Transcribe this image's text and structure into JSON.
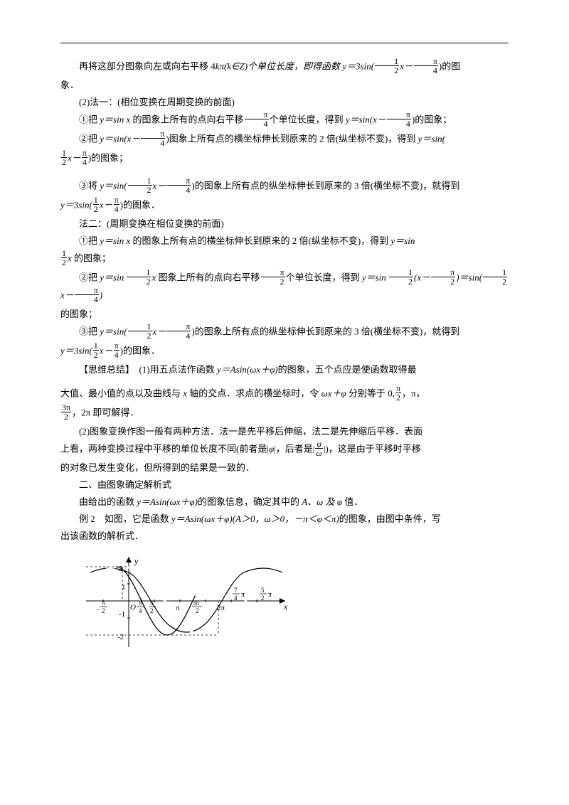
{
  "p1_a": "再将这部分图象向左或向右平移 4",
  "p1_b": "kπ(k∈Z)个单位长度，即得函数 ",
  "p1_c": "y＝3sin(",
  "p1_d": "x－",
  "p1_e": ")的图",
  "p1_f": "象．",
  "p2": "(2)法一：(相位变换在周期变换的前面)",
  "p3_a": "①把 ",
  "p3_b": "y＝sin x",
  "p3_c": " 的图象上所有的点向右平移",
  "p3_d": "个单位长度，得到 ",
  "p3_e": "y＝sin(x－",
  "p3_f": ")的图象；",
  "p4_a": "②把 ",
  "p4_b": "y＝sin(x－",
  "p4_c": ")图象上所有点的横坐标伸长到原来的 2 倍(纵坐标不变)，得到 ",
  "p4_d": "y＝sin(",
  "p4_e": "x－",
  "p4_f": ")的图象；",
  "p5_a": "③将 ",
  "p5_b": "y＝sin(",
  "p5_c": "x－",
  "p5_d": ")的图象上所有点的纵坐标伸长到原来的 3 倍(横坐标不变)，就得到",
  "p5_e": "y＝3sin(",
  "p5_f": "x－",
  "p5_g": ")的图象．",
  "p6": "法二：(周期变换在相位变换的前面)",
  "p7_a": "①把 ",
  "p7_b": "y＝sin x",
  "p7_c": " 的图象上所有点的横坐标伸长到原来的 2 倍(纵坐标不变)，得到 ",
  "p7_d": "y＝sin",
  "p7_e": "x",
  "p7_f": " 的图象；",
  "p8_a": "②把 ",
  "p8_b": "y＝sin ",
  "p8_c": "x",
  "p8_d": " 图象上所有的点向右平移",
  "p8_e": "个单位长度，得到 ",
  "p8_f": "y＝sin ",
  "p8_g": "(x－",
  "p8_h": ")＝sin(",
  "p8_i": "x－",
  "p8_j": ")",
  "p8_k": "的图象；",
  "p9_a": "③把 ",
  "p9_b": "y＝sin(",
  "p9_c": "x－",
  "p9_d": ")的图象上所有点的纵坐标伸长到原来的 3 倍(横坐标不变)，就得到",
  "p9_e": "y＝3sin(",
  "p9_f": "x－",
  "p9_g": ")的图象．",
  "sw_label": "【思维总结】",
  "sw_1a": "(1)用五点法作函数 ",
  "sw_1b": "y＝Asin(ωx＋φ)",
  "sw_1c": "的图象，五个点应是使函数取得最",
  "sw_2a": "大值、最小值的点以及曲线与 ",
  "sw_2b": "x",
  "sw_2c": " 轴的交点．求点的横坐标时，令 ",
  "sw_2d": "ωx＋φ",
  "sw_2e": " 分别等于 0,",
  "sw_2f": "，π，",
  "sw_3a": "，2π 即可解得．",
  "sw_4": "(2)图象变换作图一般有两种方法．法一是先平移后伸缩，法二是先伸缩后平移．表面",
  "sw_5a": "上看，两种变换过程中平移的单位长度不同(前者是|",
  "sw_5b": "φ",
  "sw_5c": "|，后者是|",
  "sw_5d": "|)，这是由于平移时平移",
  "sw_6": "的对象已发生变化，但所得到的结果是一致的．",
  "sec2": "二、由图象确定解析式",
  "sec2_a": "由给出的函数 ",
  "sec2_b": "y＝Asin(ωx＋φ)",
  "sec2_c": "的图象信息，确定其中的 ",
  "sec2_d": "A、ω 及 φ",
  "sec2_e": " 值．",
  "ex2_a": "例 2　如图，它是函数 ",
  "ex2_b": "y＝Asin(ωx＋φ)(A＞0，ω＞0，－π＜φ＜π)",
  "ex2_c": "的图象，由图中条件，写",
  "ex2_d": "出该函数的解析式．",
  "chart": {
    "amplitude": 2,
    "y_labels": [
      "2",
      "1",
      "-1",
      "-2"
    ],
    "x_labels": [
      "-π/2",
      "O",
      "π/4",
      "π/2",
      "π",
      "3π/2",
      "2π",
      "7π/4",
      "5π/2"
    ],
    "axis_labels": {
      "x": "x",
      "y": "y"
    },
    "line_color": "#000000",
    "background": "#ffffff"
  }
}
